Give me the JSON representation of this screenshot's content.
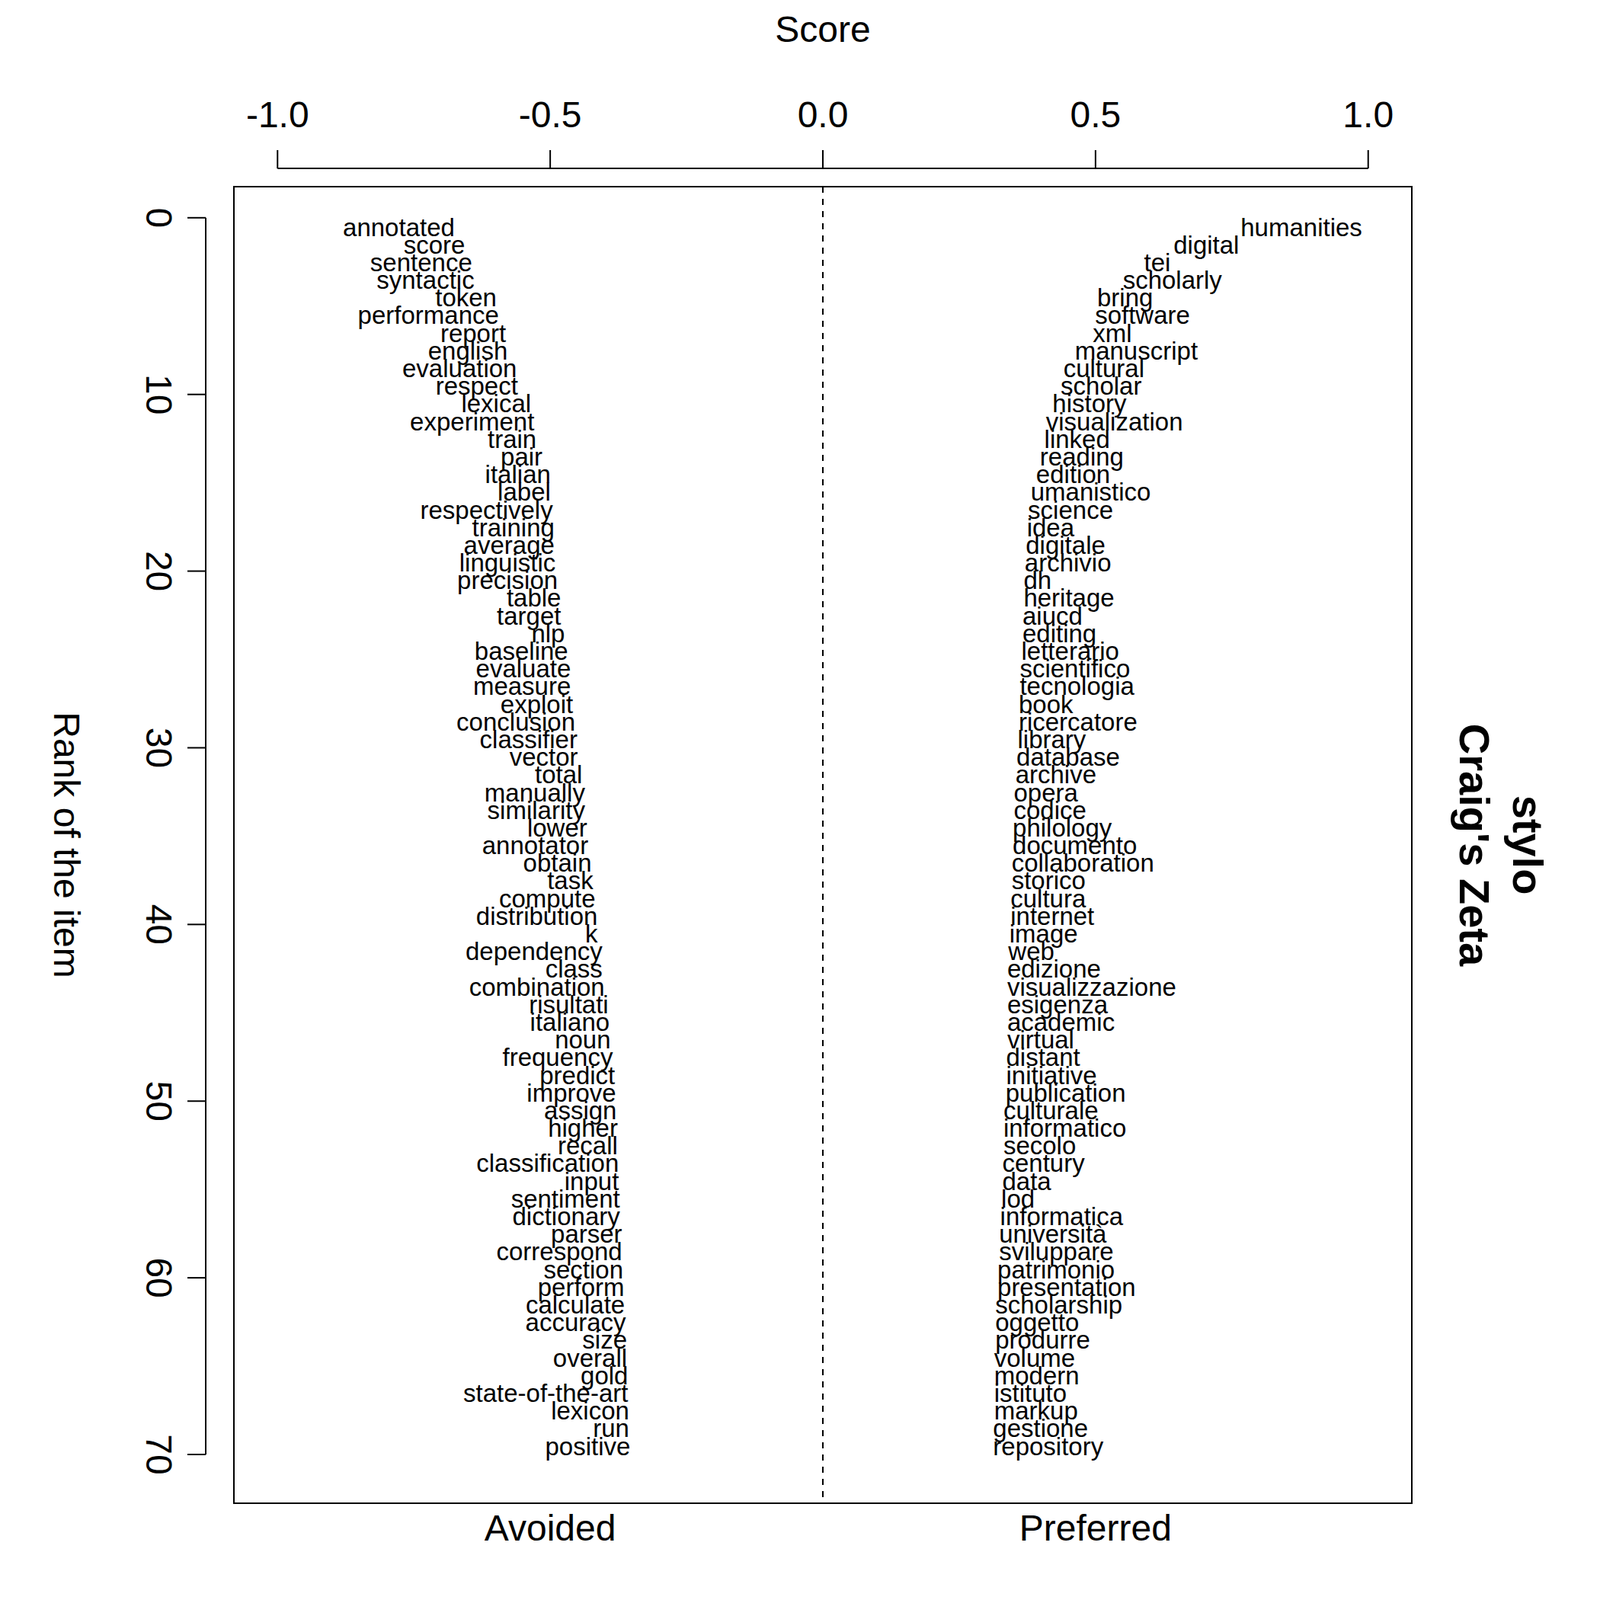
{
  "chart_data": {
    "type": "scatter",
    "title": "stylo",
    "subtitle": "Craig's Zeta",
    "x_label": "Score",
    "y_label": "Rank of the item",
    "xlim": [
      -1.08,
      1.08
    ],
    "ylim": [
      -1.76,
      72.76
    ],
    "xticks": [
      {
        "value": -1,
        "label": "-1.0"
      },
      {
        "value": -0.5,
        "label": "-0.5"
      },
      {
        "value": 0,
        "label": "0.0"
      },
      {
        "value": 0.5,
        "label": "0.5"
      },
      {
        "value": 1,
        "label": "1.0"
      }
    ],
    "yticks": [
      0,
      10,
      20,
      30,
      40,
      50,
      60,
      70
    ],
    "series": [
      {
        "name": "Avoided",
        "labels": [
          "annotated",
          "score",
          "sentence",
          "syntactic",
          "token",
          "performance",
          "report",
          "english",
          "evaluation",
          "respect",
          "lexical",
          "experiment",
          "train",
          "pair",
          "italian",
          "label",
          "respectively",
          "training",
          "average",
          "linguistic",
          "precision",
          "table",
          "target",
          "nlp",
          "baseline",
          "evaluate",
          "measure",
          "exploit",
          "conclusion",
          "classifier",
          "vector",
          "total",
          "manually",
          "similarity",
          "lower",
          "annotator",
          "obtain",
          "task",
          "compute",
          "distribution",
          "k",
          "dependency",
          "class",
          "combination",
          "risultati",
          "italiano",
          "noun",
          "frequency",
          "predict",
          "improve",
          "assign",
          "higher",
          "recall",
          "classification",
          "input",
          "sentiment",
          "dictionary",
          "parser",
          "correspond",
          "section",
          "perform",
          "calculate",
          "accuracy",
          "size",
          "overall",
          "gold",
          "state-of-the-art",
          "lexicon",
          "run",
          "positive"
        ],
        "x": [
          -0.675,
          -0.656,
          -0.643,
          -0.639,
          -0.598,
          -0.594,
          -0.581,
          -0.578,
          -0.561,
          -0.559,
          -0.535,
          -0.529,
          -0.525,
          -0.514,
          -0.499,
          -0.499,
          -0.495,
          -0.492,
          -0.492,
          -0.49,
          -0.486,
          -0.48,
          -0.48,
          -0.473,
          -0.467,
          -0.462,
          -0.462,
          -0.458,
          -0.454,
          -0.45,
          -0.449,
          -0.441,
          -0.436,
          -0.436,
          -0.432,
          -0.43,
          -0.424,
          -0.421,
          -0.417,
          -0.413,
          -0.413,
          -0.404,
          -0.404,
          -0.4,
          -0.393,
          -0.391,
          -0.389,
          -0.385,
          -0.381,
          -0.379,
          -0.378,
          -0.376,
          -0.376,
          -0.374,
          -0.374,
          -0.372,
          -0.372,
          -0.368,
          -0.368,
          -0.366,
          -0.364,
          -0.363,
          -0.361,
          -0.359,
          -0.359,
          -0.357,
          -0.357,
          -0.355,
          -0.355,
          -0.353
        ],
        "values": [
          1,
          2,
          3,
          4,
          5,
          6,
          7,
          8,
          9,
          10,
          11,
          12,
          13,
          14,
          15,
          16,
          17,
          18,
          19,
          20,
          21,
          22,
          23,
          24,
          25,
          26,
          27,
          28,
          29,
          30,
          31,
          32,
          33,
          34,
          35,
          36,
          37,
          38,
          39,
          40,
          41,
          42,
          43,
          44,
          45,
          46,
          47,
          48,
          49,
          50,
          51,
          52,
          53,
          54,
          55,
          56,
          57,
          58,
          59,
          60,
          61,
          62,
          63,
          64,
          65,
          66,
          67,
          68,
          69,
          70
        ]
      },
      {
        "name": "Preferred",
        "labels": [
          "humanities",
          "digital",
          "tei",
          "scholarly",
          "bring",
          "software",
          "xml",
          "manuscript",
          "cultural",
          "scholar",
          "history",
          "visualization",
          "linked",
          "reading",
          "edition",
          "umanistico",
          "science",
          "idea",
          "digitale",
          "archivio",
          "dh",
          "heritage",
          "aiucd",
          "editing",
          "letterario",
          "scientifico",
          "tecnologia",
          "book",
          "ricercatore",
          "library",
          "database",
          "archive",
          "opera",
          "codice",
          "philology",
          "documento",
          "collaboration",
          "storico",
          "cultura",
          "internet",
          "image",
          "web",
          "edizione",
          "visualizzazione",
          "esigenza",
          "academic",
          "virtual",
          "distant",
          "initiative",
          "publication",
          "culturale",
          "informatico",
          "secolo",
          "century",
          "data",
          "lod",
          "informatica",
          "università",
          "sviluppare",
          "patrimonio",
          "presentation",
          "scholarship",
          "oggetto",
          "produrre",
          "volume",
          "modern",
          "istituto",
          "markup",
          "gestione",
          "repository"
        ],
        "x": [
          0.766,
          0.643,
          0.589,
          0.55,
          0.503,
          0.499,
          0.495,
          0.462,
          0.441,
          0.436,
          0.421,
          0.409,
          0.406,
          0.398,
          0.391,
          0.381,
          0.376,
          0.374,
          0.372,
          0.37,
          0.368,
          0.368,
          0.366,
          0.366,
          0.364,
          0.361,
          0.361,
          0.359,
          0.359,
          0.357,
          0.355,
          0.353,
          0.35,
          0.35,
          0.348,
          0.348,
          0.346,
          0.346,
          0.344,
          0.344,
          0.342,
          0.34,
          0.338,
          0.338,
          0.338,
          0.338,
          0.338,
          0.336,
          0.336,
          0.335,
          0.331,
          0.331,
          0.331,
          0.329,
          0.329,
          0.327,
          0.325,
          0.323,
          0.323,
          0.32,
          0.32,
          0.316,
          0.316,
          0.316,
          0.314,
          0.314,
          0.314,
          0.314,
          0.312,
          0.312
        ],
        "values": [
          1,
          2,
          3,
          4,
          5,
          6,
          7,
          8,
          9,
          10,
          11,
          12,
          13,
          14,
          15,
          16,
          17,
          18,
          19,
          20,
          21,
          22,
          23,
          24,
          25,
          26,
          27,
          28,
          29,
          30,
          31,
          32,
          33,
          34,
          35,
          36,
          37,
          38,
          39,
          40,
          41,
          42,
          43,
          44,
          45,
          46,
          47,
          48,
          49,
          50,
          51,
          52,
          53,
          54,
          55,
          56,
          57,
          58,
          59,
          60,
          61,
          62,
          63,
          64,
          65,
          66,
          67,
          68,
          69,
          70
        ]
      }
    ]
  }
}
